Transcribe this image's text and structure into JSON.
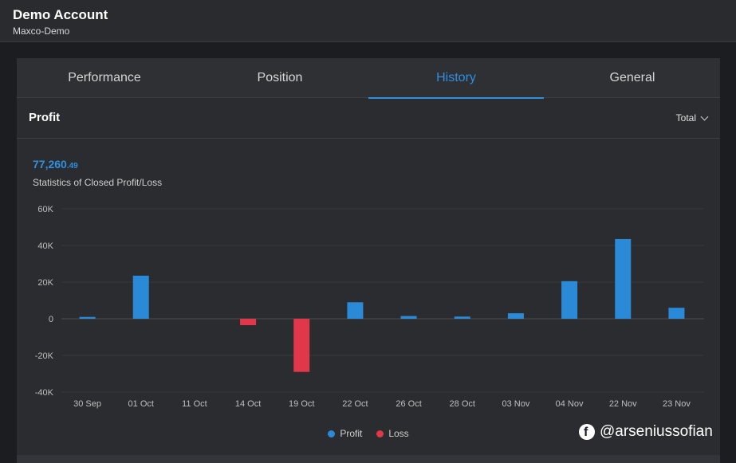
{
  "header": {
    "title": "Demo Account",
    "subtitle": "Maxco-Demo"
  },
  "tabs": [
    {
      "label": "Performance",
      "active": false
    },
    {
      "label": "Position",
      "active": false
    },
    {
      "label": "History",
      "active": true
    },
    {
      "label": "General",
      "active": false
    }
  ],
  "section": {
    "title": "Profit",
    "dropdown_value": "Total"
  },
  "stat": {
    "integer": "77,260",
    "decimal": ".49",
    "caption": "Statistics of Closed Profit/Loss"
  },
  "colors": {
    "profit": "#2b8ad8",
    "loss": "#e0384a",
    "accent": "#2f8fe0"
  },
  "chart_data": {
    "type": "bar",
    "categories": [
      "30 Sep",
      "01 Oct",
      "11 Oct",
      "14 Oct",
      "19 Oct",
      "22 Oct",
      "26 Oct",
      "28 Oct",
      "03 Nov",
      "04 Nov",
      "22 Nov",
      "23 Nov"
    ],
    "series": [
      {
        "name": "Profit",
        "values": [
          1000,
          23500,
          0,
          0,
          0,
          9000,
          1500,
          1200,
          3000,
          20500,
          43500,
          6000
        ]
      },
      {
        "name": "Loss",
        "values": [
          0,
          0,
          0,
          -3500,
          -29000,
          0,
          0,
          0,
          0,
          0,
          0,
          0
        ]
      }
    ],
    "y_ticks": [
      "60K",
      "40K",
      "20K",
      "0",
      "-20K",
      "-40K"
    ],
    "ylim": [
      -40000,
      60000
    ],
    "grid": true,
    "legend": "bottom-center"
  },
  "watermark": {
    "text": "@arseniussofian",
    "icon": "facebook-icon"
  }
}
